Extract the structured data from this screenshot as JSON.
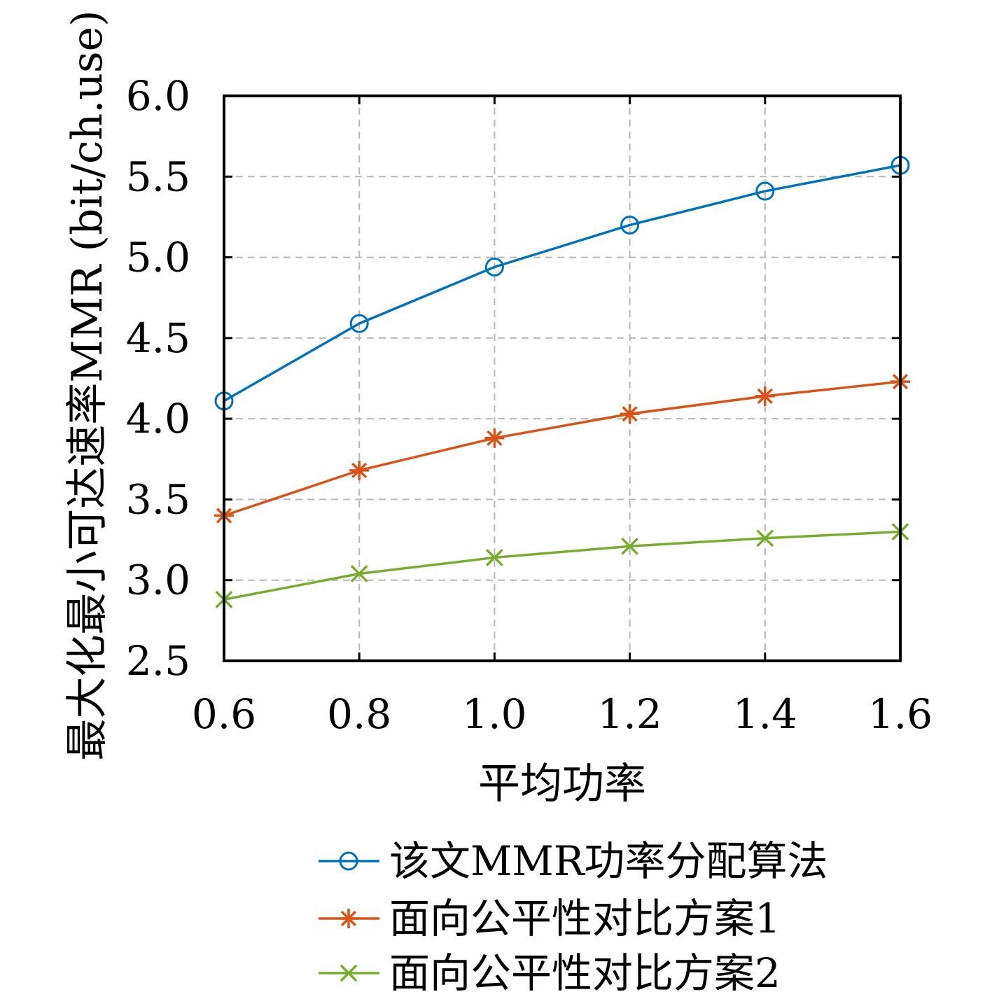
{
  "chart_data": {
    "type": "line",
    "xlabel": "平均功率",
    "ylabel": "最大化最小可达速率MMR (bit/ch.use)",
    "xlim": [
      0.6,
      1.6
    ],
    "ylim": [
      2.5,
      6.0
    ],
    "grid": true,
    "legend_position": "bottom",
    "x": [
      0.6,
      0.8,
      1.0,
      1.2,
      1.4,
      1.6
    ],
    "x_tick_labels": [
      "0.6",
      "0.8",
      "1.0",
      "1.2",
      "1.4",
      "1.6"
    ],
    "y_ticks": [
      2.5,
      3.0,
      3.5,
      4.0,
      4.5,
      5.0,
      5.5,
      6.0
    ],
    "y_tick_labels": [
      "2.5",
      "3.0",
      "3.5",
      "4.0",
      "4.5",
      "5.0",
      "5.5",
      "6.0"
    ],
    "series": [
      {
        "name": "该文MMR功率分配算法",
        "color": "#0072bd",
        "marker": "circle",
        "values": [
          4.11,
          4.59,
          4.94,
          5.2,
          5.41,
          5.57
        ]
      },
      {
        "name": "面向公平性对比方案1",
        "color": "#d95319",
        "marker": "asterisk",
        "values": [
          3.4,
          3.68,
          3.88,
          4.03,
          4.14,
          4.23
        ]
      },
      {
        "name": "面向公平性对比方案2",
        "color": "#77ac30",
        "marker": "cross",
        "values": [
          2.88,
          3.04,
          3.14,
          3.21,
          3.26,
          3.3
        ]
      }
    ]
  }
}
